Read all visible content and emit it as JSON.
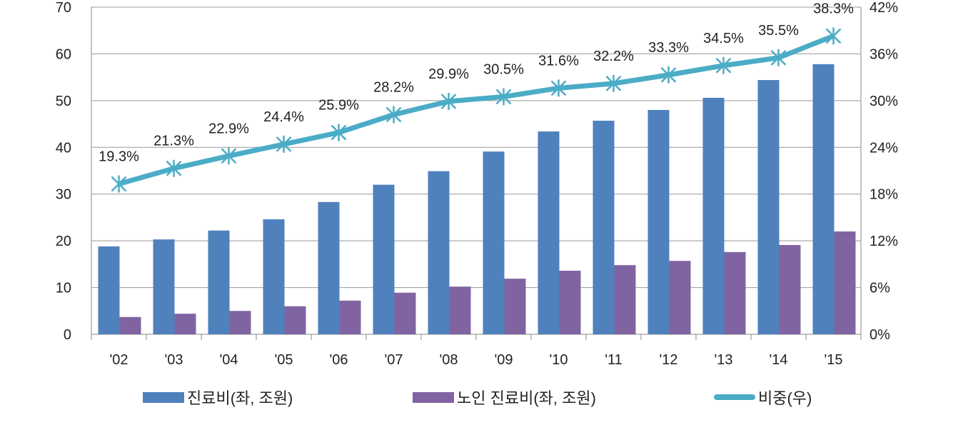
{
  "chart_data": {
    "type": "bar",
    "categories": [
      "'02",
      "'03",
      "'04",
      "'05",
      "'06",
      "'07",
      "'08",
      "'09",
      "'10",
      "'11",
      "'12",
      "'13",
      "'14",
      "'15"
    ],
    "series": [
      {
        "name": "진료비(좌, 조원)",
        "type": "bar",
        "axis": "left",
        "color": "#4F81BD",
        "values": [
          18.8,
          20.3,
          22.2,
          24.6,
          28.3,
          32.0,
          34.9,
          39.1,
          43.4,
          45.7,
          48.0,
          50.6,
          54.4,
          57.8
        ]
      },
      {
        "name": "노인 진료비(좌, 조원)",
        "type": "bar",
        "axis": "left",
        "color": "#8064A2",
        "values": [
          3.7,
          4.4,
          5.0,
          6.0,
          7.2,
          8.9,
          10.2,
          11.9,
          13.6,
          14.8,
          15.7,
          17.6,
          19.1,
          22.0
        ]
      },
      {
        "name": "비중(우)",
        "type": "line",
        "axis": "right",
        "color": "#4BACC6",
        "values": [
          19.3,
          21.3,
          22.9,
          24.4,
          25.9,
          28.2,
          29.9,
          30.5,
          31.6,
          32.2,
          33.3,
          34.5,
          35.5,
          38.3
        ],
        "labels": [
          "19.3%",
          "21.3%",
          "22.9%",
          "24.4%",
          "25.9%",
          "28.2%",
          "29.9%",
          "30.5%",
          "31.6%",
          "32.2%",
          "33.3%",
          "34.5%",
          "35.5%",
          "38.3%"
        ]
      }
    ],
    "ylim": [
      0,
      70
    ],
    "yticks": [
      "0",
      "10",
      "20",
      "30",
      "40",
      "50",
      "60",
      "70"
    ],
    "y2lim": [
      0,
      42
    ],
    "y2ticks": [
      "0%",
      "6%",
      "12%",
      "18%",
      "24%",
      "30%",
      "36%",
      "42%"
    ],
    "grid": true,
    "legend": "bottom"
  }
}
